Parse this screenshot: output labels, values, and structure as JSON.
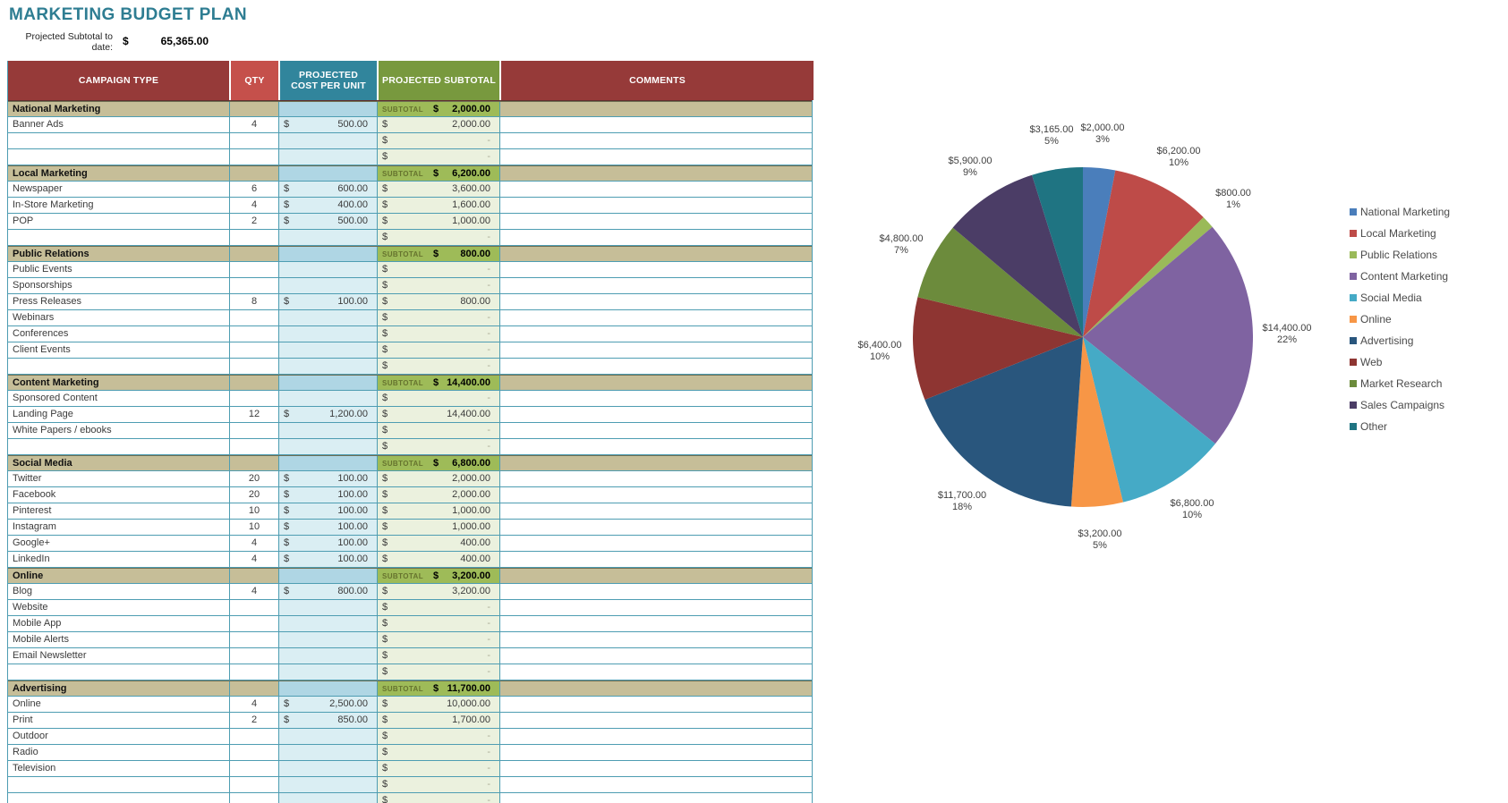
{
  "page": {
    "title": "MARKETING BUDGET PLAN"
  },
  "summary": {
    "label_line1": "Projected Subtotal to",
    "label_line2": "date:",
    "currency": "$",
    "value": "65,365.00"
  },
  "table": {
    "headers": {
      "campaign_type": "CAMPAIGN TYPE",
      "qty": "QTY",
      "cost_per_unit": "PROJECTED COST PER UNIT",
      "subtotal": "PROJECTED SUBTOTAL",
      "comments": "COMMENTS"
    },
    "subtotal_label": "SUBTOTAL",
    "currency": "$",
    "empty_value": "-",
    "sections": [
      {
        "name": "National Marketing",
        "subtotal": "2,000.00",
        "rows": [
          {
            "name": "Banner Ads",
            "qty": "4",
            "cost": "500.00",
            "subtotal": "2,000.00"
          },
          {
            "name": "",
            "qty": "",
            "cost": "",
            "subtotal": "-"
          },
          {
            "name": "",
            "qty": "",
            "cost": "",
            "subtotal": "-"
          }
        ]
      },
      {
        "name": "Local Marketing",
        "subtotal": "6,200.00",
        "rows": [
          {
            "name": "Newspaper",
            "qty": "6",
            "cost": "600.00",
            "subtotal": "3,600.00"
          },
          {
            "name": "In-Store Marketing",
            "qty": "4",
            "cost": "400.00",
            "subtotal": "1,600.00"
          },
          {
            "name": "POP",
            "qty": "2",
            "cost": "500.00",
            "subtotal": "1,000.00"
          },
          {
            "name": "",
            "qty": "",
            "cost": "",
            "subtotal": "-"
          }
        ]
      },
      {
        "name": "Public Relations",
        "subtotal": "800.00",
        "rows": [
          {
            "name": "Public Events",
            "qty": "",
            "cost": "",
            "subtotal": "-"
          },
          {
            "name": "Sponsorships",
            "qty": "",
            "cost": "",
            "subtotal": "-"
          },
          {
            "name": "Press Releases",
            "qty": "8",
            "cost": "100.00",
            "subtotal": "800.00"
          },
          {
            "name": "Webinars",
            "qty": "",
            "cost": "",
            "subtotal": "-"
          },
          {
            "name": "Conferences",
            "qty": "",
            "cost": "",
            "subtotal": "-"
          },
          {
            "name": "Client Events",
            "qty": "",
            "cost": "",
            "subtotal": "-"
          },
          {
            "name": "",
            "qty": "",
            "cost": "",
            "subtotal": "-"
          }
        ]
      },
      {
        "name": "Content Marketing",
        "subtotal": "14,400.00",
        "rows": [
          {
            "name": "Sponsored Content",
            "qty": "",
            "cost": "",
            "subtotal": "-"
          },
          {
            "name": "Landing Page",
            "qty": "12",
            "cost": "1,200.00",
            "subtotal": "14,400.00"
          },
          {
            "name": "White Papers / ebooks",
            "qty": "",
            "cost": "",
            "subtotal": "-"
          },
          {
            "name": "",
            "qty": "",
            "cost": "",
            "subtotal": "-"
          }
        ]
      },
      {
        "name": "Social Media",
        "subtotal": "6,800.00",
        "rows": [
          {
            "name": "Twitter",
            "qty": "20",
            "cost": "100.00",
            "subtotal": "2,000.00"
          },
          {
            "name": "Facebook",
            "qty": "20",
            "cost": "100.00",
            "subtotal": "2,000.00"
          },
          {
            "name": "Pinterest",
            "qty": "10",
            "cost": "100.00",
            "subtotal": "1,000.00"
          },
          {
            "name": "Instagram",
            "qty": "10",
            "cost": "100.00",
            "subtotal": "1,000.00"
          },
          {
            "name": "Google+",
            "qty": "4",
            "cost": "100.00",
            "subtotal": "400.00"
          },
          {
            "name": "LinkedIn",
            "qty": "4",
            "cost": "100.00",
            "subtotal": "400.00"
          }
        ]
      },
      {
        "name": "Online",
        "subtotal": "3,200.00",
        "rows": [
          {
            "name": "Blog",
            "qty": "4",
            "cost": "800.00",
            "subtotal": "3,200.00"
          },
          {
            "name": "Website",
            "qty": "",
            "cost": "",
            "subtotal": "-"
          },
          {
            "name": "Mobile App",
            "qty": "",
            "cost": "",
            "subtotal": "-"
          },
          {
            "name": "Mobile Alerts",
            "qty": "",
            "cost": "",
            "subtotal": "-"
          },
          {
            "name": "Email Newsletter",
            "qty": "",
            "cost": "",
            "subtotal": "-"
          },
          {
            "name": "",
            "qty": "",
            "cost": "",
            "subtotal": "-"
          }
        ]
      },
      {
        "name": "Advertising",
        "subtotal": "11,700.00",
        "rows": [
          {
            "name": "Online",
            "qty": "4",
            "cost": "2,500.00",
            "subtotal": "10,000.00"
          },
          {
            "name": "Print",
            "qty": "2",
            "cost": "850.00",
            "subtotal": "1,700.00"
          },
          {
            "name": "Outdoor",
            "qty": "",
            "cost": "",
            "subtotal": "-"
          },
          {
            "name": "Radio",
            "qty": "",
            "cost": "",
            "subtotal": "-"
          },
          {
            "name": "Television",
            "qty": "",
            "cost": "",
            "subtotal": "-"
          },
          {
            "name": "",
            "qty": "",
            "cost": "",
            "subtotal": "-"
          },
          {
            "name": "",
            "qty": "",
            "cost": "",
            "subtotal": "-"
          }
        ]
      }
    ]
  },
  "chart_data": {
    "type": "pie",
    "title": "",
    "legend_position": "right",
    "total": 65365,
    "slices": [
      {
        "label": "National Marketing",
        "value": 2000,
        "display": "$2,000.00",
        "percent": "3%",
        "color": "#4A7EBB"
      },
      {
        "label": "Local Marketing",
        "value": 6200,
        "display": "$6,200.00",
        "percent": "10%",
        "color": "#BE4B48"
      },
      {
        "label": "Public Relations",
        "value": 800,
        "display": "$800.00",
        "percent": "1%",
        "color": "#9ABA59"
      },
      {
        "label": "Content Marketing",
        "value": 14400,
        "display": "$14,400.00",
        "percent": "22%",
        "color": "#7F63A1"
      },
      {
        "label": "Social Media",
        "value": 6800,
        "display": "$6,800.00",
        "percent": "10%",
        "color": "#45AAC6"
      },
      {
        "label": "Online",
        "value": 3200,
        "display": "$3,200.00",
        "percent": "5%",
        "color": "#F79646"
      },
      {
        "label": "Advertising",
        "value": 11700,
        "display": "$11,700.00",
        "percent": "18%",
        "color": "#29567D"
      },
      {
        "label": "Web",
        "value": 6400,
        "display": "$6,400.00",
        "percent": "10%",
        "color": "#8E3532"
      },
      {
        "label": "Market Research",
        "value": 4800,
        "display": "$4,800.00",
        "percent": "7%",
        "color": "#6C8B3C"
      },
      {
        "label": "Sales Campaigns",
        "value": 5900,
        "display": "$5,900.00",
        "percent": "9%",
        "color": "#4B3D66"
      },
      {
        "label": "Other",
        "value": 3165,
        "display": "$3,165.00",
        "percent": "5%",
        "color": "#1F7482"
      }
    ]
  },
  "colors": {
    "title_teal": "#2E7D92",
    "header_dark_red": "#963A39",
    "qty_header_red": "#C5504B",
    "cost_header_teal": "#31859C",
    "subtotal_header_green": "#78993E",
    "section_tan": "#C6BE98",
    "subtotal_row_green": "#9EBB58",
    "cost_cell_blue": "#DAEEF3",
    "subtotal_cell_green": "#EBF1DE",
    "grid_border_teal": "#4E9DB2"
  }
}
